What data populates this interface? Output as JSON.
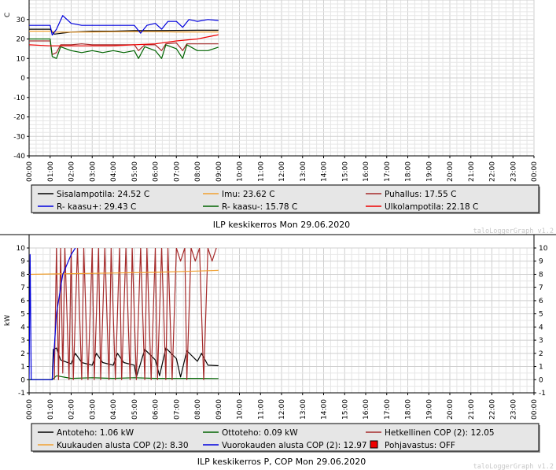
{
  "charts": [
    {
      "title": "ILP keskikerros Mon 29.06.2020",
      "watermark": "taloLoggerGraph v1.2",
      "ylabel": "C",
      "ylim": [
        -40,
        40
      ],
      "yticks": [
        "-40",
        "-30",
        "-20",
        "-10",
        "0",
        "10",
        "20",
        "30"
      ],
      "right_axis": false,
      "xticks": [
        "00:00",
        "01:00",
        "02:00",
        "03:00",
        "04:00",
        "05:00",
        "06:00",
        "07:00",
        "08:00",
        "09:00",
        "10:00",
        "11:00",
        "12:00",
        "13:00",
        "14:00",
        "15:00",
        "16:00",
        "17:00",
        "18:00",
        "19:00",
        "20:00",
        "21:00",
        "22:00",
        "23:00",
        "00:00"
      ],
      "legend": [
        {
          "label": "Sisalampotila: 24.52 C",
          "color": "#000000",
          "type": "line"
        },
        {
          "label": "Imu: 23.62 C",
          "color": "#f0a030",
          "type": "line"
        },
        {
          "label": "Puhallus: 17.55 C",
          "color": "#a52a2a",
          "type": "line"
        },
        {
          "label": "R- kaasu+: 29.43 C",
          "color": "#0000dd",
          "type": "line"
        },
        {
          "label": "R- kaasu-: 15.78 C",
          "color": "#006400",
          "type": "line"
        },
        {
          "label": "Ulkolampotila: 22.18 C",
          "color": "#ee0000",
          "type": "line"
        }
      ]
    },
    {
      "title": "ILP keskikerros P, COP Mon 29.06.2020",
      "watermark": "taloLoggerGraph v1.2",
      "ylabel": "kW",
      "ylim": [
        -1,
        10
      ],
      "yticks": [
        "-1",
        "0",
        "1",
        "2",
        "3",
        "4",
        "5",
        "6",
        "7",
        "8",
        "9",
        "10"
      ],
      "right_axis": true,
      "xticks": [
        "00:00",
        "01:00",
        "02:00",
        "03:00",
        "04:00",
        "05:00",
        "06:00",
        "07:00",
        "08:00",
        "09:00",
        "10:00",
        "11:00",
        "12:00",
        "13:00",
        "14:00",
        "15:00",
        "16:00",
        "17:00",
        "18:00",
        "19:00",
        "20:00",
        "21:00",
        "22:00",
        "23:00",
        "00:00"
      ],
      "legend": [
        {
          "label": "Antoteho: 1.06 kW",
          "color": "#000000",
          "type": "line"
        },
        {
          "label": "Ottoteho: 0.09 kW",
          "color": "#006400",
          "type": "line"
        },
        {
          "label": "Hetkellinen COP (2): 12.05",
          "color": "#a52a2a",
          "type": "line"
        },
        {
          "label": "Kuukauden alusta COP (2): 8.30",
          "color": "#f0a030",
          "type": "line"
        },
        {
          "label": "Vuorokauden alusta COP (2): 12.97",
          "color": "#0000dd",
          "type": "line"
        },
        {
          "label": "Pohjavastus: OFF",
          "color": "#ee0000",
          "type": "box"
        }
      ]
    }
  ],
  "chart_data": [
    {
      "type": "line",
      "title": "ILP keskikerros Mon 29.06.2020",
      "xlabel": "",
      "ylabel": "C",
      "xlim": [
        0,
        24
      ],
      "ylim": [
        -40,
        40
      ],
      "grid": true,
      "legend_position": "bottom",
      "series": [
        {
          "name": "Sisalampotila",
          "color": "#000000",
          "x": [
            0,
            1,
            1.2,
            2,
            3,
            4,
            5,
            6,
            7,
            8,
            9
          ],
          "y": [
            25,
            25,
            22.5,
            23.5,
            24,
            24,
            24.3,
            24.3,
            24.4,
            24.5,
            24.5
          ]
        },
        {
          "name": "Imu",
          "color": "#f0a030",
          "x": [
            0,
            1,
            1.2,
            2,
            3,
            4,
            5,
            6,
            7,
            8,
            9
          ],
          "y": [
            24,
            24,
            23.5,
            23.5,
            23.6,
            23.7,
            23.8,
            23.8,
            23.6,
            23.6,
            23.6
          ]
        },
        {
          "name": "Puhallus",
          "color": "#a52a2a",
          "x": [
            0,
            1,
            1.1,
            1.3,
            1.5,
            2,
            2.5,
            3,
            3.5,
            4,
            4.5,
            5,
            5.2,
            5.5,
            6,
            6.3,
            6.5,
            7,
            7.3,
            7.5,
            8,
            8.5,
            9
          ],
          "y": [
            19,
            19,
            12,
            13,
            17,
            17,
            17.5,
            17,
            17,
            17,
            17,
            17,
            14,
            17,
            17,
            14,
            17.5,
            18,
            14,
            17.5,
            17.5,
            17.5,
            17.5
          ]
        },
        {
          "name": "R- kaasu+",
          "color": "#0000dd",
          "x": [
            0,
            1,
            1.1,
            1.3,
            1.6,
            2,
            2.5,
            3,
            3.5,
            4,
            4.5,
            5,
            5.3,
            5.6,
            6,
            6.3,
            6.6,
            7,
            7.3,
            7.6,
            8,
            8.5,
            9
          ],
          "y": [
            27,
            27,
            22,
            25,
            32,
            28,
            27,
            27,
            27,
            27,
            27,
            27,
            23,
            27,
            28,
            25,
            29,
            29,
            26,
            30,
            29,
            30,
            29.5
          ]
        },
        {
          "name": "R- kaasu-",
          "color": "#006400",
          "x": [
            0,
            1,
            1.1,
            1.3,
            1.5,
            2,
            2.5,
            3,
            3.5,
            4,
            4.5,
            5,
            5.2,
            5.5,
            6,
            6.3,
            6.5,
            7,
            7.3,
            7.5,
            8,
            8.5,
            9
          ],
          "y": [
            20,
            20,
            11,
            10,
            16,
            14,
            13,
            14,
            13,
            14,
            13,
            14,
            10,
            16,
            14,
            10,
            17,
            15,
            10,
            17,
            14,
            14,
            15.8
          ]
        },
        {
          "name": "Ulkolampotila",
          "color": "#ee0000",
          "x": [
            0,
            1,
            2,
            3,
            4,
            5,
            6,
            7,
            8,
            9
          ],
          "y": [
            17,
            16.5,
            16.5,
            16.5,
            16.5,
            17,
            17.5,
            19,
            20,
            22.2
          ]
        }
      ]
    },
    {
      "type": "line",
      "title": "ILP keskikerros P, COP Mon 29.06.2020",
      "xlabel": "",
      "ylabel": "kW",
      "xlim": [
        0,
        24
      ],
      "ylim": [
        -1,
        10
      ],
      "grid": true,
      "legend_position": "bottom",
      "series": [
        {
          "name": "Antoteho",
          "color": "#000000",
          "x": [
            0,
            1.1,
            1.15,
            1.3,
            1.5,
            2,
            2.2,
            2.5,
            3,
            3.2,
            3.5,
            4,
            4.2,
            4.5,
            5,
            5.1,
            5.5,
            6,
            6.2,
            6.5,
            7,
            7.2,
            7.5,
            8,
            8.2,
            8.5,
            9
          ],
          "y": [
            0,
            0,
            2.3,
            2.4,
            1.5,
            1.2,
            2,
            1.3,
            1.1,
            2,
            1.3,
            1.1,
            2,
            1.3,
            1.1,
            0.2,
            2.3,
            1.5,
            0.3,
            2.4,
            1.6,
            0.2,
            2.2,
            1.4,
            2,
            1.1,
            1.06
          ]
        },
        {
          "name": "Ottoteho",
          "color": "#006400",
          "x": [
            0,
            1.1,
            1.3,
            2,
            3,
            4,
            5,
            6,
            7,
            8,
            9
          ],
          "y": [
            0,
            0,
            0.3,
            0.1,
            0.15,
            0.1,
            0.15,
            0.1,
            0.1,
            0.1,
            0.09
          ]
        },
        {
          "name": "Hetkellinen COP (2)",
          "color": "#a52a2a",
          "x": [
            1.2,
            1.3,
            1.4,
            1.5,
            1.6,
            1.7,
            1.9,
            2.0,
            2.1,
            2.3,
            2.5,
            2.6,
            2.8,
            3.0,
            3.1,
            3.3,
            3.4,
            3.6,
            3.8,
            3.9,
            4.1,
            4.3,
            4.4,
            4.6,
            4.8,
            4.9,
            5.1,
            5.3,
            5.5,
            5.6,
            5.8,
            6.0,
            6.1,
            6.3,
            6.5,
            6.6,
            6.8,
            7.0,
            7.2,
            7.4,
            7.5,
            7.7,
            7.9,
            8.1,
            8.3,
            8.5,
            8.7,
            8.9,
            9.0
          ],
          "y": [
            0,
            10,
            0,
            10,
            0.5,
            10,
            0,
            10,
            0,
            10,
            0,
            10,
            0,
            10,
            0,
            10,
            0,
            10,
            0,
            10,
            0,
            10,
            0,
            10,
            0,
            10,
            0,
            10,
            0,
            10,
            0,
            10,
            0,
            10,
            0,
            10,
            0,
            10,
            9,
            10,
            0,
            10,
            9,
            10,
            0,
            10,
            9,
            10,
            12.05
          ]
        },
        {
          "name": "Kuukauden alusta COP (2)",
          "color": "#f0a030",
          "x": [
            0,
            2,
            4,
            6,
            8,
            9
          ],
          "y": [
            8.0,
            8.05,
            8.1,
            8.15,
            8.25,
            8.3
          ]
        },
        {
          "name": "Vuorokauden alusta COP (2)",
          "color": "#0000dd",
          "x": [
            0,
            0.05,
            0.1,
            1.1,
            1.3,
            1.6,
            2,
            2.2
          ],
          "y": [
            0,
            9.5,
            0,
            0,
            5,
            8,
            9.5,
            10
          ]
        }
      ]
    }
  ]
}
